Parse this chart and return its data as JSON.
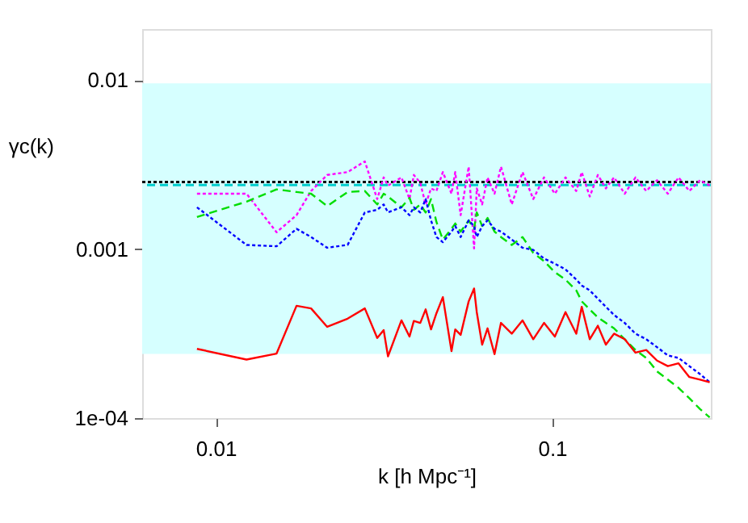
{
  "chart_data": {
    "type": "line",
    "xlabel": "k [h Mpc⁻¹]",
    "ylabel": "γc(k)",
    "log": "xy",
    "grid": false,
    "xlim": [
      0.00604,
      0.2965
    ],
    "xticks": [
      0.01,
      0.1
    ],
    "ylim": [
      0.0001,
      0.0201
    ],
    "yticks": [
      0.01,
      0.001,
      {
        "value": 0.0001,
        "label": "1e-04"
      }
    ],
    "x": [
      0.00879,
      0.01234,
      0.01516,
      0.01738,
      0.0192,
      0.02144,
      0.02466,
      0.02774,
      0.0302,
      0.03156,
      0.03251,
      0.03565,
      0.03767,
      0.0388,
      0.04055,
      0.04207,
      0.04365,
      0.04529,
      0.04733,
      0.05022,
      0.05152,
      0.05346,
      0.05649,
      0.05861,
      0.0597,
      0.06194,
      0.06427,
      0.06742,
      0.07047,
      0.07586,
      0.08166,
      0.0879,
      0.09462,
      0.1019,
      0.1096,
      0.118,
      0.1225,
      0.1294,
      0.1368,
      0.1445,
      0.1528,
      0.1644,
      0.177,
      0.1905,
      0.2051,
      0.2208,
      0.2377,
      0.2559,
      0.2754,
      0.2942
    ],
    "bands": [
      {
        "axis": "y",
        "from": 0.00024,
        "to": 0.0096,
        "color": "#d6ffff"
      }
    ],
    "ref_lines": [
      {
        "axis": "y",
        "value": 0.0024,
        "color": "#00cccc",
        "line_style": "dashed"
      },
      {
        "axis": "y",
        "value": 0.0025,
        "color": "#000000",
        "line_style": "dotted"
      }
    ],
    "series": [
      {
        "color": "#ff00ff",
        "line_style": "dotted",
        "values": [
          0.00213,
          0.00213,
          0.00126,
          0.00159,
          0.00221,
          0.00275,
          0.00286,
          0.00331,
          0.00198,
          0.00266,
          0.00238,
          0.00266,
          0.00198,
          0.00275,
          0.00247,
          0.00184,
          0.00229,
          0.00221,
          0.00286,
          0.00213,
          0.00286,
          0.00159,
          0.00308,
          0.00101,
          0.00229,
          0.00184,
          0.00266,
          0.00213,
          0.00308,
          0.00184,
          0.00286,
          0.00198,
          0.00266,
          0.00213,
          0.00266,
          0.00221,
          0.00286,
          0.00205,
          0.00275,
          0.00229,
          0.00266,
          0.00213,
          0.00266,
          0.00221,
          0.00256,
          0.00213,
          0.00266,
          0.00221,
          0.00256,
          0.00238
        ]
      },
      {
        "color": "#00dd00",
        "line_style": "dashed",
        "values": [
          0.00155,
          0.00191,
          0.00226,
          0.00218,
          0.00213,
          0.0018,
          0.00218,
          0.00221,
          0.00184,
          0.00213,
          0.00205,
          0.00177,
          0.00201,
          0.00171,
          0.00184,
          0.00165,
          0.00198,
          0.00145,
          0.00114,
          0.00132,
          0.00142,
          0.00127,
          0.00148,
          0.00132,
          0.00165,
          0.00137,
          0.00153,
          0.00127,
          0.00118,
          0.00106,
          0.00118,
          0.00095,
          0.00085,
          0.00073,
          0.00066,
          0.00057,
          0.000491,
          0.00044,
          0.000394,
          0.000366,
          0.00034,
          0.000293,
          0.000253,
          0.000227,
          0.000189,
          0.000169,
          0.000151,
          0.000131,
          0.000113,
          0.000101
        ]
      },
      {
        "color": "#0000ff",
        "line_style": "dotted",
        "values": [
          0.00177,
          0.00106,
          0.00104,
          0.00132,
          0.00118,
          0.00102,
          0.00106,
          0.00165,
          0.00171,
          0.00184,
          0.00165,
          0.00177,
          0.00159,
          0.00177,
          0.00165,
          0.00198,
          0.00148,
          0.00118,
          0.0011,
          0.00127,
          0.00137,
          0.00118,
          0.00148,
          0.00137,
          0.00118,
          0.00137,
          0.00148,
          0.00132,
          0.00127,
          0.00114,
          0.00102,
          0.00099,
          0.00088,
          0.00082,
          0.00076,
          0.00066,
          0.00061,
          0.00057,
          0.000509,
          0.000456,
          0.000408,
          0.000366,
          0.000316,
          0.000293,
          0.000263,
          0.000235,
          0.000227,
          0.000203,
          0.000182,
          0.000163
        ]
      },
      {
        "color": "#ff0000",
        "line_style": "solid",
        "values": [
          0.000257,
          0.000222,
          0.000241,
          0.000462,
          0.000446,
          0.000347,
          0.000388,
          0.000446,
          0.000298,
          0.000332,
          0.000232,
          0.000379,
          0.000304,
          0.000376,
          0.000366,
          0.00044,
          0.000335,
          0.000417,
          0.00052,
          0.000249,
          0.000335,
          0.000311,
          0.000491,
          0.000585,
          0.000424,
          0.000272,
          0.00034,
          0.000239,
          0.000366,
          0.000316,
          0.000379,
          0.000293,
          0.000366,
          0.000304,
          0.000424,
          0.000316,
          0.000456,
          0.000293,
          0.000352,
          0.000272,
          0.000316,
          0.000293,
          0.000244,
          0.000253,
          0.000219,
          0.000203,
          0.000211,
          0.000175,
          0.000169,
          0.000163
        ]
      }
    ]
  }
}
